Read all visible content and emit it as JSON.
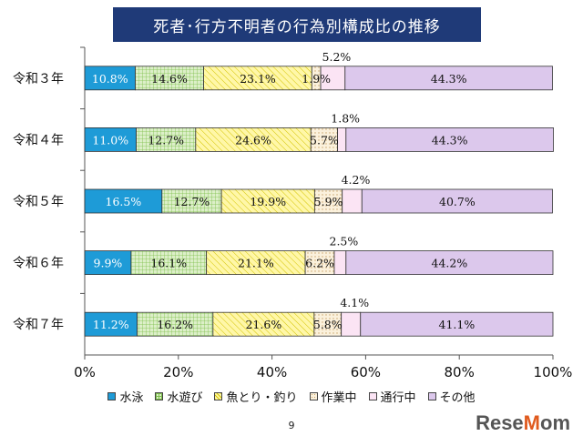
{
  "chart_data": {
    "type": "bar",
    "orientation": "horizontal",
    "stacked": true,
    "title": "死者･行方不明者の行為別構成比の推移",
    "categories": [
      "令和３年",
      "令和４年",
      "令和５年",
      "令和６年",
      "令和７年"
    ],
    "series": [
      {
        "name": "水泳",
        "values": [
          10.8,
          11.0,
          16.5,
          9.9,
          11.2
        ],
        "labels": [
          "10.8%",
          "11.0%",
          "16.5%",
          "9.9%",
          "11.2%"
        ],
        "color": "#1e9bd7",
        "pattern": "solid"
      },
      {
        "name": "水遊び",
        "values": [
          14.6,
          12.7,
          12.7,
          16.1,
          16.2
        ],
        "labels": [
          "14.6%",
          "12.7%",
          "12.7%",
          "16.1%",
          "16.2%"
        ],
        "color": "#dcefc8",
        "pattern": "grid"
      },
      {
        "name": "魚とり・釣り",
        "values": [
          23.1,
          24.6,
          19.9,
          21.1,
          21.6
        ],
        "labels": [
          "23.1%",
          "24.6%",
          "19.9%",
          "21.1%",
          "21.6%"
        ],
        "color": "#fff7a8",
        "pattern": "hatch"
      },
      {
        "name": "作業中",
        "values": [
          1.9,
          5.7,
          5.9,
          6.2,
          5.8
        ],
        "labels": [
          "1.9%",
          "5.7%",
          "5.9%",
          "6.2%",
          "5.8%"
        ],
        "color": "#fbf1dc",
        "pattern": "dots"
      },
      {
        "name": "通行中",
        "values": [
          5.2,
          1.8,
          4.2,
          2.5,
          4.1
        ],
        "labels": [
          "5.2%",
          "1.8%",
          "4.2%",
          "2.5%",
          "4.1%"
        ],
        "color": "#fbe4f4",
        "pattern": "solid"
      },
      {
        "name": "その他",
        "values": [
          44.3,
          44.3,
          40.7,
          44.2,
          41.1
        ],
        "labels": [
          "44.3%",
          "44.3%",
          "40.7%",
          "44.2%",
          "41.1%"
        ],
        "color": "#dcc8ec",
        "pattern": "solid"
      }
    ],
    "xticks": [
      "0%",
      "20%",
      "40%",
      "60%",
      "80%",
      "100%"
    ],
    "xlim": [
      0,
      100
    ],
    "grid": false,
    "legend_position": "bottom"
  },
  "page_number": "9",
  "brand": {
    "name": "ReseMom",
    "left": "Rese",
    "dot": "M",
    "right": "om"
  }
}
